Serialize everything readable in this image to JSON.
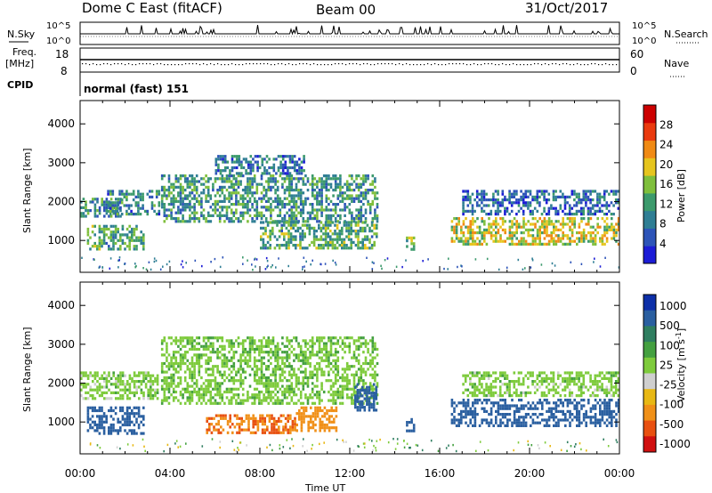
{
  "header": {
    "station": "Dome C East (fitACF)",
    "beam": "Beam 00",
    "date": "31/Oct/2017"
  },
  "panels": {
    "nsky_label": "N.Sky",
    "nsky_ticks": [
      "10^5",
      "10^0"
    ],
    "nsearch_label": "N.Search",
    "nsearch_ticks": [
      "10^5",
      "10^0"
    ],
    "freq_label_1": "Freq.",
    "freq_label_2": "[MHz]",
    "freq_ticks": [
      "18",
      "8"
    ],
    "nave_label": "Nave",
    "nave_ticks": [
      "60",
      "0"
    ],
    "cpid_label": "CPID",
    "cpid_value": "normal (fast) 151"
  },
  "colors": {
    "power_scale": [
      "#1c1cd6",
      "#2d54b8",
      "#2f7e94",
      "#3c9a6c",
      "#7fbf3c",
      "#e6c51e",
      "#f08a14",
      "#ea3a0e",
      "#cc0000"
    ],
    "velocity_scale": [
      "#0d2fa8",
      "#2a5fa0",
      "#2f7e60",
      "#44a040",
      "#7ecb3c",
      "#cfcfcf",
      "#e8b814",
      "#f09018",
      "#e85010",
      "#d01010"
    ]
  },
  "chart_data": [
    {
      "type": "heatmap",
      "title": "",
      "xlabel": "Time UT",
      "ylabel": "Slant Range [km]",
      "xticks": [
        "00:00",
        "04:00",
        "08:00",
        "12:00",
        "16:00",
        "20:00",
        "00:00"
      ],
      "yticks": [
        "1000",
        "2000",
        "3000",
        "4000"
      ],
      "xlim_hours": [
        0,
        24
      ],
      "ylim_km": [
        180,
        4600
      ],
      "colorbar_label": "Power [dB]",
      "colorbar_ticks": [
        "4",
        "8",
        "12",
        "16",
        "20",
        "24",
        "28"
      ],
      "colorbar_range": [
        0,
        32
      ],
      "echo_regions": [
        {
          "t0": 0.0,
          "t1": 1.8,
          "r0": 1600,
          "r1": 2100,
          "value": 10
        },
        {
          "t0": 0.3,
          "t1": 2.8,
          "r0": 800,
          "r1": 1400,
          "value": 12
        },
        {
          "t0": 1.2,
          "t1": 3.5,
          "r0": 1700,
          "r1": 2300,
          "value": 9
        },
        {
          "t0": 3.6,
          "t1": 13.2,
          "r0": 1500,
          "r1": 2700,
          "value": 11
        },
        {
          "t0": 6.0,
          "t1": 10.0,
          "r0": 2700,
          "r1": 3200,
          "value": 8
        },
        {
          "t0": 8.0,
          "t1": 13.2,
          "r0": 800,
          "r1": 1500,
          "value": 13
        },
        {
          "t0": 14.5,
          "t1": 14.9,
          "r0": 800,
          "r1": 1100,
          "value": 16
        },
        {
          "t0": 16.5,
          "t1": 24.0,
          "r0": 900,
          "r1": 1600,
          "value": 18
        },
        {
          "t0": 17.0,
          "t1": 24.0,
          "r0": 1700,
          "r1": 2300,
          "value": 7
        }
      ]
    },
    {
      "type": "heatmap",
      "title": "",
      "xlabel": "Time UT",
      "ylabel": "Slant Range [km]",
      "xticks": [
        "00:00",
        "04:00",
        "08:00",
        "12:00",
        "16:00",
        "20:00",
        "00:00"
      ],
      "yticks": [
        "1000",
        "2000",
        "3000",
        "4000"
      ],
      "xlim_hours": [
        0,
        24
      ],
      "ylim_km": [
        180,
        4600
      ],
      "colorbar_label": "Velocity [m s-1]",
      "colorbar_ticks": [
        "1000",
        "500",
        "100",
        "25",
        "-25",
        "-100",
        "-500",
        "-1000"
      ],
      "colorbar_range": [
        -1000,
        1000
      ],
      "echo_regions": [
        {
          "t0": 0.0,
          "t1": 3.5,
          "r0": 1600,
          "r1": 2300,
          "value": 0
        },
        {
          "t0": 0.3,
          "t1": 2.8,
          "r0": 700,
          "r1": 1400,
          "value": 200
        },
        {
          "t0": 3.6,
          "t1": 13.2,
          "r0": 1500,
          "r1": 3200,
          "value": 10
        },
        {
          "t0": 5.6,
          "t1": 9.6,
          "r0": 700,
          "r1": 1200,
          "value": -300
        },
        {
          "t0": 9.6,
          "t1": 11.4,
          "r0": 800,
          "r1": 1400,
          "value": -250
        },
        {
          "t0": 12.2,
          "t1": 13.2,
          "r0": 1300,
          "r1": 2000,
          "value": 300
        },
        {
          "t0": 14.5,
          "t1": 14.9,
          "r0": 800,
          "r1": 1100,
          "value": 120
        },
        {
          "t0": 16.5,
          "t1": 24.0,
          "r0": 900,
          "r1": 1600,
          "value": 300
        },
        {
          "t0": 17.0,
          "t1": 24.0,
          "r0": 1700,
          "r1": 2300,
          "value": 0
        }
      ]
    }
  ]
}
